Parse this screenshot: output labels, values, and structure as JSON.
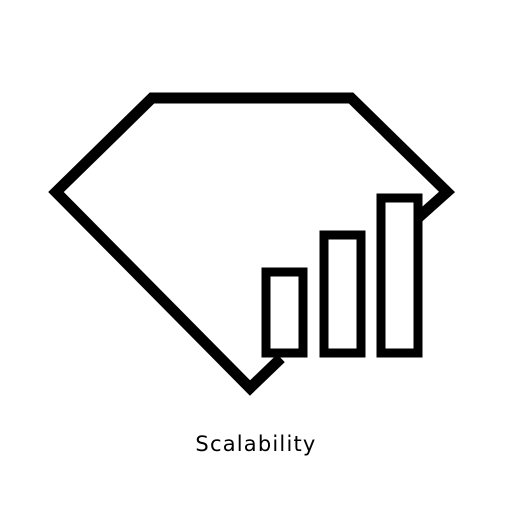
{
  "icon": {
    "name": "diamond-with-bar-chart-icon",
    "stroke_color": "#000000",
    "fill_color": "#ffffff"
  },
  "caption": {
    "text": "Scalability"
  }
}
